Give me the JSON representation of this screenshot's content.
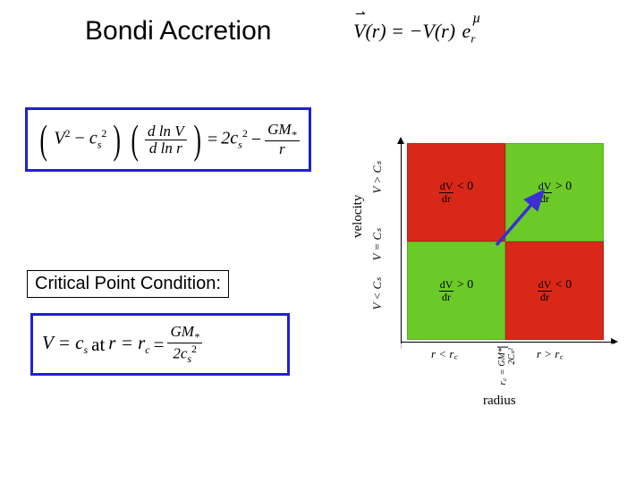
{
  "title": "Bondi Accretion",
  "eq_vector": {
    "lhs_vec": "V",
    "lhs_arg": "(r)",
    "eq": " = −",
    "rhs_scal": "V",
    "rhs_arg": "(r)",
    "unit_vec": "e",
    "unit_sub": "r",
    "mu": "µ",
    "arrow": "⇀"
  },
  "eq_main": {
    "p1_a": "V",
    "p1_a_sup": "2",
    "p1_minus": " − ",
    "p1_b": "c",
    "p1_b_sub": "s",
    "p1_b_sup": "2",
    "frac_num_a": "d ln V",
    "frac_den_a": "d ln r",
    "eq": " = ",
    "rhs_a": "2c",
    "rhs_a_sub": "s",
    "rhs_a_sup": "2",
    "minus": " − ",
    "frac_num_b": "GM",
    "frac_num_b_sub": "*",
    "frac_den_b": "r"
  },
  "crit_label": "Critical Point Condition:",
  "eq_crit": {
    "lhs": "V = c",
    "lhs_sub": "s",
    "at": " at ",
    "r_eq": "r = r",
    "r_sub": "c",
    "eq2": " = ",
    "num": "GM",
    "num_sub": "*",
    "den": "2c",
    "den_sub": "s",
    "den_sup": "2"
  },
  "diagram": {
    "y_label": "velocity",
    "x_label": "radius",
    "y_tick_top": "V > Cₛ",
    "y_tick_mid": "V = Cₛ",
    "y_tick_bot": "V < Cₛ",
    "x_tick_left": "r < r꜀",
    "x_tick_right": "r > r꜀",
    "rc_frac_lhs": "r꜀ =",
    "rc_num": "GM*",
    "rc_den": "2Cₛ²",
    "quads": [
      {
        "color": "#d92817",
        "dv": "dV",
        "dr": "dr",
        "sign": " < 0"
      },
      {
        "color": "#6cca28",
        "dv": "dV",
        "dr": "dr",
        "sign": " > 0"
      },
      {
        "color": "#6cca28",
        "dv": "dV",
        "dr": "dr",
        "sign": " > 0"
      },
      {
        "color": "#d92817",
        "dv": "dV",
        "dr": "dr",
        "sign": " < 0"
      }
    ],
    "arrow_color": "#3b2fd4"
  }
}
